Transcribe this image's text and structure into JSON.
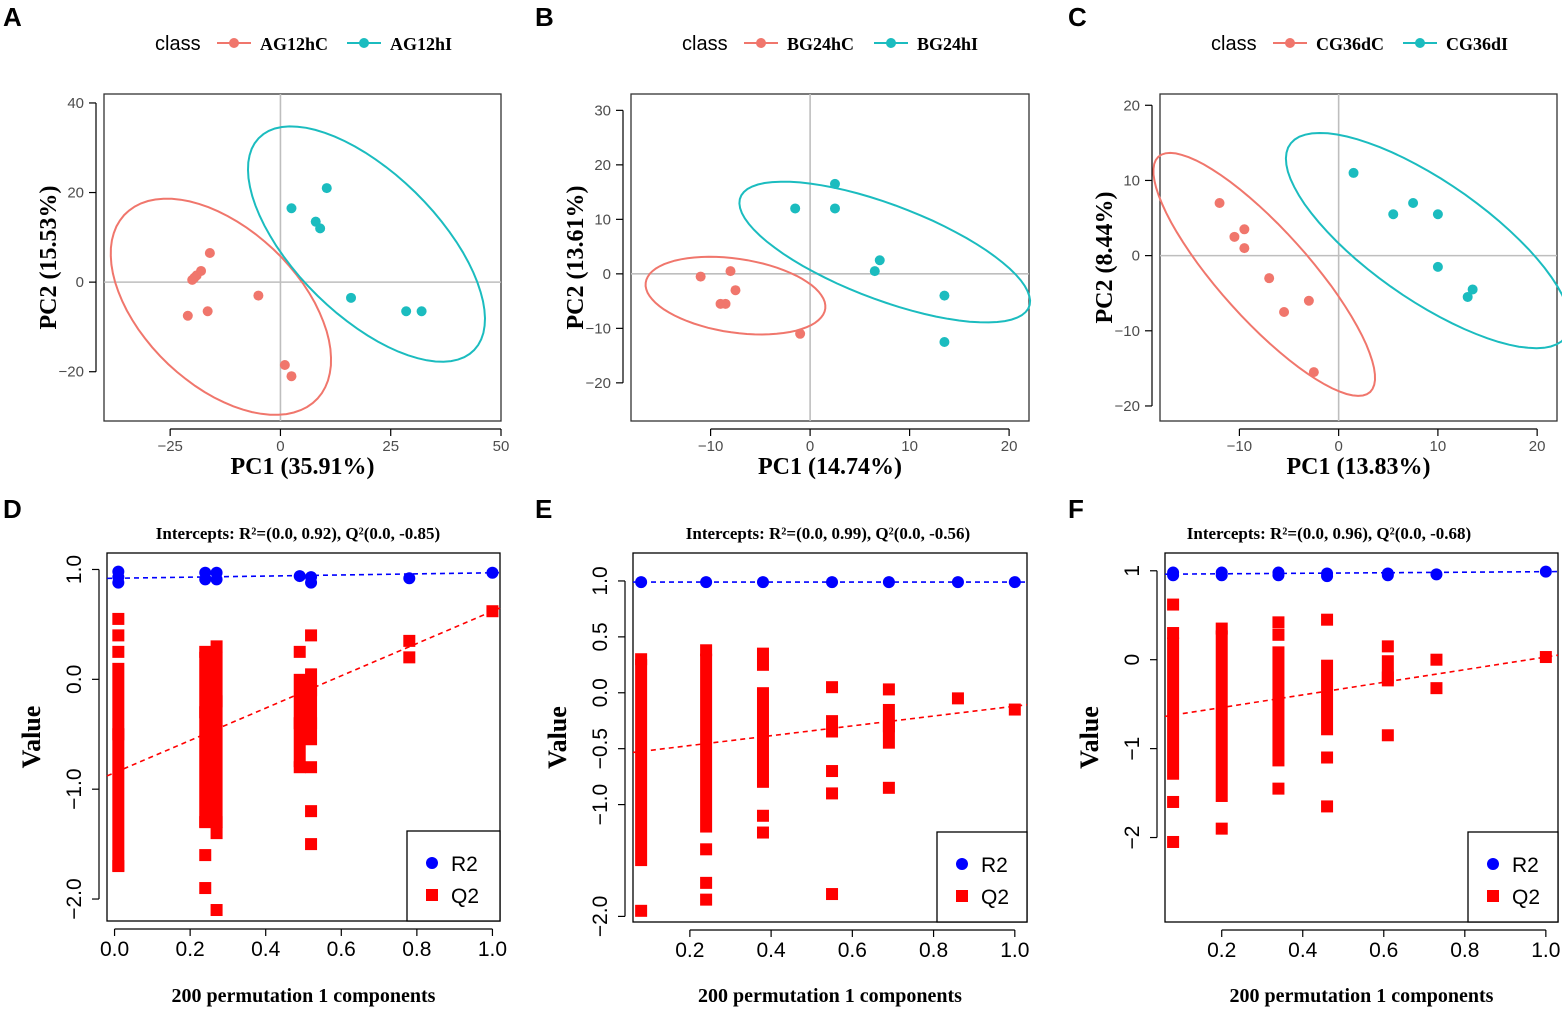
{
  "colors": {
    "red": "#f0766c",
    "teal": "#1bbcbf",
    "blue": "#0000ff",
    "qred": "#ff0000",
    "grid": "#bebebe"
  },
  "chart_data": [
    {
      "panel": "A",
      "type": "scatter",
      "legend_title": "class",
      "legend_labels": [
        "AG12hC",
        "AG12hI"
      ],
      "xlabel": "PC1 (35.91%)",
      "ylabel": "PC2 (15.53%)",
      "xlim": [
        -40,
        50
      ],
      "ylim": [
        -31,
        42
      ],
      "xticks": [
        -25,
        0,
        25,
        50
      ],
      "xtick_labels": [
        "−25",
        "0",
        "25",
        "50"
      ],
      "yticks": [
        -20,
        0,
        20,
        40
      ],
      "ytick_labels": [
        "−20",
        "0",
        "20",
        "40"
      ],
      "series": [
        {
          "name": "AG12hC",
          "color": "red",
          "x": [
            -16,
            -18,
            -19,
            -19.5,
            -20,
            -21,
            -16.5,
            -5,
            1,
            2.5
          ],
          "y": [
            6.5,
            2.5,
            1.5,
            1,
            0.5,
            -7.5,
            -6.5,
            -3,
            -18.5,
            -21
          ],
          "ellipse": {
            "cx": -13.5,
            "cy": -5.5,
            "rx": 30,
            "ry": 17.5,
            "angle": -43
          }
        },
        {
          "name": "AG12hI",
          "color": "teal",
          "x": [
            10.5,
            2.5,
            8,
            9,
            16,
            28.5,
            32
          ],
          "y": [
            21,
            16.5,
            13.5,
            12,
            -3.5,
            -6.5,
            -6.5
          ],
          "ellipse": {
            "cx": 19.5,
            "cy": 8.5,
            "rx": 34,
            "ry": 16,
            "angle": -44
          }
        }
      ]
    },
    {
      "panel": "B",
      "type": "scatter",
      "legend_title": "class",
      "legend_labels": [
        "BG24hC",
        "BG24hI"
      ],
      "xlabel": "PC1 (14.74%)",
      "ylabel": "PC2 (13.61%)",
      "xlim": [
        -18,
        22
      ],
      "ylim": [
        -27,
        33
      ],
      "xticks": [
        -10,
        0,
        10,
        20
      ],
      "xtick_labels": [
        "−10",
        "0",
        "10",
        "20"
      ],
      "yticks": [
        -20,
        -10,
        0,
        10,
        20,
        30
      ],
      "ytick_labels": [
        "−20",
        "−10",
        "0",
        "10",
        "20",
        "30"
      ],
      "series": [
        {
          "name": "BG24hC",
          "color": "red",
          "x": [
            -11,
            -8,
            -7.5,
            -9,
            -8.5,
            -1
          ],
          "y": [
            -0.5,
            0.5,
            -3,
            -5.5,
            -5.5,
            -11
          ],
          "ellipse": {
            "cx": -7.5,
            "cy": -4,
            "rx": 9.5,
            "ry": 6.5,
            "angle": -25
          }
        },
        {
          "name": "BG24hI",
          "color": "teal",
          "x": [
            -1.5,
            2.5,
            2.5,
            7,
            6.5,
            13.5,
            13.5
          ],
          "y": [
            12,
            16.5,
            12,
            2.5,
            0.5,
            -4,
            -12.5
          ],
          "ellipse": {
            "cx": 7.5,
            "cy": 4,
            "rx": 18,
            "ry": 7.5,
            "angle": -40
          }
        }
      ]
    },
    {
      "panel": "C",
      "type": "scatter",
      "legend_title": "class",
      "legend_labels": [
        "CG36dC",
        "CG36dI"
      ],
      "xlabel": "PC1 (13.83%)",
      "ylabel": "PC2 (8.44%)",
      "xlim": [
        -18,
        22
      ],
      "ylim": [
        -22,
        21.5
      ],
      "xticks": [
        -10,
        0,
        10,
        20
      ],
      "xtick_labels": [
        "−10",
        "0",
        "10",
        "20"
      ],
      "yticks": [
        -20,
        -10,
        0,
        10,
        20
      ],
      "ytick_labels": [
        "−20",
        "−10",
        "0",
        "10",
        "20"
      ],
      "series": [
        {
          "name": "CG36dC",
          "color": "red",
          "x": [
            -12,
            -10.5,
            -9.5,
            -9.5,
            -7,
            -5.5,
            -3,
            -2.5
          ],
          "y": [
            7,
            2.5,
            3.5,
            1,
            -3,
            -7.5,
            -6,
            -15.5
          ],
          "ellipse": {
            "cx": -7.5,
            "cy": -2.5,
            "rx": 19,
            "ry": 5,
            "angle": -57
          }
        },
        {
          "name": "CG36dI",
          "color": "teal",
          "x": [
            1.5,
            5.5,
            7.5,
            10,
            10,
            13,
            13.5
          ],
          "y": [
            11,
            5.5,
            7,
            5.5,
            -1.5,
            -5.5,
            -4.5
          ],
          "ellipse": {
            "cx": 9,
            "cy": 2,
            "rx": 19,
            "ry": 7,
            "angle": -45
          }
        }
      ]
    },
    {
      "panel": "D",
      "type": "scatter",
      "title": "Intercepts: R²=(0.0, 0.92), Q²(0.0, -0.85)",
      "xlabel": "200 permutation 1 components",
      "ylabel": "Value",
      "xlim": [
        -0.02,
        1.02
      ],
      "ylim": [
        -2.2,
        1.15
      ],
      "xticks": [
        0,
        0.2,
        0.4,
        0.6,
        0.8,
        1.0
      ],
      "xtick_labels": [
        "0.0",
        "0.2",
        "0.4",
        "0.6",
        "0.8",
        "1.0"
      ],
      "yticks": [
        -2,
        -1,
        0,
        1
      ],
      "ytick_labels": [
        "−2.0",
        "−1.0",
        "0.0",
        "1.0"
      ],
      "legend_labels": [
        "R2",
        "Q2"
      ],
      "r2": {
        "x": [
          0.01,
          0.01,
          0.01,
          0.24,
          0.24,
          0.27,
          0.27,
          0.49,
          0.52,
          0.52,
          0.78,
          1.0
        ],
        "y": [
          0.98,
          0.93,
          0.88,
          0.97,
          0.91,
          0.97,
          0.91,
          0.94,
          0.93,
          0.88,
          0.92,
          0.97
        ],
        "line": [
          0.92,
          0.97
        ]
      },
      "q2": {
        "x": [
          0.01,
          0.01,
          0.01,
          0.01,
          0.01,
          0.24,
          0.24,
          0.24,
          0.24,
          0.24,
          0.27,
          0.27,
          0.27,
          0.27,
          0.27,
          0.49,
          0.49,
          0.49,
          0.52,
          0.52,
          0.52,
          0.52,
          0.52,
          0.52,
          0.78,
          0.78,
          1.0
        ],
        "y": [
          0.55,
          0.4,
          0.25,
          -0.5,
          -1.7,
          0.25,
          -0.3,
          -1.3,
          -1.6,
          -1.9,
          0.3,
          -0.2,
          -1.3,
          -1.4,
          -2.1,
          0.25,
          -0.4,
          -0.8,
          0.4,
          -0.1,
          -0.4,
          -0.8,
          -1.2,
          -1.5,
          0.35,
          0.2,
          0.62
        ],
        "segments": [
          [
            0.01,
            -1.75,
            0.15
          ],
          [
            0.24,
            -1.35,
            0.25
          ],
          [
            0.27,
            -1.35,
            0.25
          ],
          [
            0.49,
            -0.8,
            0.05
          ],
          [
            0.52,
            -0.6,
            0.1
          ]
        ],
        "line": [
          -0.85,
          0.62
        ]
      }
    },
    {
      "panel": "E",
      "type": "scatter",
      "title": "Intercepts: R²=(0.0, 0.99), Q²(0.0, -0.56)",
      "xlabel": "200 permutation 1 components",
      "ylabel": "Value",
      "xlim": [
        0.06,
        1.03
      ],
      "ylim": [
        -2.05,
        1.25
      ],
      "xticks": [
        0.2,
        0.4,
        0.6,
        0.8,
        1.0
      ],
      "xtick_labels": [
        "0.2",
        "0.4",
        "0.6",
        "0.8",
        "1.0"
      ],
      "yticks": [
        -2,
        -1,
        -0.5,
        0,
        0.5,
        1
      ],
      "ytick_labels": [
        "−2.0",
        "−1.0",
        "−0.5",
        "0.0",
        "0.5",
        "1.0"
      ],
      "legend_labels": [
        "R2",
        "Q2"
      ],
      "r2": {
        "x": [
          0.08,
          0.24,
          0.38,
          0.55,
          0.69,
          0.86,
          1.0
        ],
        "y": [
          0.99,
          0.99,
          0.99,
          0.99,
          0.99,
          0.99,
          0.99
        ],
        "line": [
          0.99,
          0.99
        ]
      },
      "q2": {
        "x": [
          0.08,
          0.08,
          0.24,
          0.24,
          0.24,
          0.24,
          0.38,
          0.38,
          0.38,
          0.38,
          0.55,
          0.55,
          0.55,
          0.55,
          0.69,
          0.69,
          0.69,
          0.86,
          1.0
        ],
        "y": [
          0.3,
          -1.95,
          0.38,
          -1.4,
          -1.7,
          -1.85,
          0.35,
          0.25,
          -1.1,
          -1.25,
          0.05,
          -0.7,
          -0.9,
          -1.8,
          0.03,
          -0.3,
          -0.85,
          -0.05,
          -0.15
        ],
        "segments": [
          [
            0.08,
            -1.55,
            0.3
          ],
          [
            0.24,
            -1.25,
            0.35
          ],
          [
            0.38,
            -0.85,
            0.05
          ],
          [
            0.55,
            -0.4,
            -0.2
          ],
          [
            0.69,
            -0.5,
            -0.1
          ]
        ],
        "line": [
          -0.56,
          -0.12
        ]
      }
    },
    {
      "panel": "F",
      "type": "scatter",
      "title": "Intercepts: R²=(0.0, 0.96), Q²(0.0, -0.68)",
      "xlabel": "200 permutation 1 components",
      "ylabel": "Value",
      "xlim": [
        0.06,
        1.03
      ],
      "ylim": [
        -2.95,
        1.2
      ],
      "xticks": [
        0.2,
        0.4,
        0.6,
        0.8,
        1.0
      ],
      "xtick_labels": [
        "0.2",
        "0.4",
        "0.6",
        "0.8",
        "1.0"
      ],
      "yticks": [
        -2,
        -1,
        0,
        1
      ],
      "ytick_labels": [
        "−2",
        "−1",
        "0",
        "1"
      ],
      "legend_labels": [
        "R2",
        "Q2"
      ],
      "r2": {
        "x": [
          0.08,
          0.08,
          0.2,
          0.2,
          0.34,
          0.34,
          0.46,
          0.46,
          0.61,
          0.61,
          0.73,
          1.0
        ],
        "y": [
          0.98,
          0.95,
          0.98,
          0.95,
          0.98,
          0.95,
          0.97,
          0.94,
          0.97,
          0.95,
          0.96,
          0.99
        ],
        "line": [
          0.96,
          0.99
        ]
      },
      "q2": {
        "x": [
          0.08,
          0.08,
          0.08,
          0.08,
          0.2,
          0.2,
          0.34,
          0.34,
          0.34,
          0.46,
          0.46,
          0.46,
          0.61,
          0.61,
          0.61,
          0.73,
          0.73,
          1.0
        ],
        "y": [
          0.62,
          0.3,
          -1.6,
          -2.05,
          0.35,
          -1.9,
          0.42,
          0.28,
          -1.45,
          0.45,
          -1.1,
          -1.65,
          0.15,
          -0.2,
          -0.85,
          0.0,
          -0.32,
          0.03
        ],
        "segments": [
          [
            0.08,
            -1.35,
            0.25
          ],
          [
            0.2,
            -1.6,
            0.33
          ],
          [
            0.34,
            -1.2,
            0.15
          ],
          [
            0.46,
            -0.85,
            0.0
          ],
          [
            0.61,
            -0.3,
            0.05
          ]
        ],
        "line": [
          -0.68,
          0.03
        ]
      }
    }
  ]
}
